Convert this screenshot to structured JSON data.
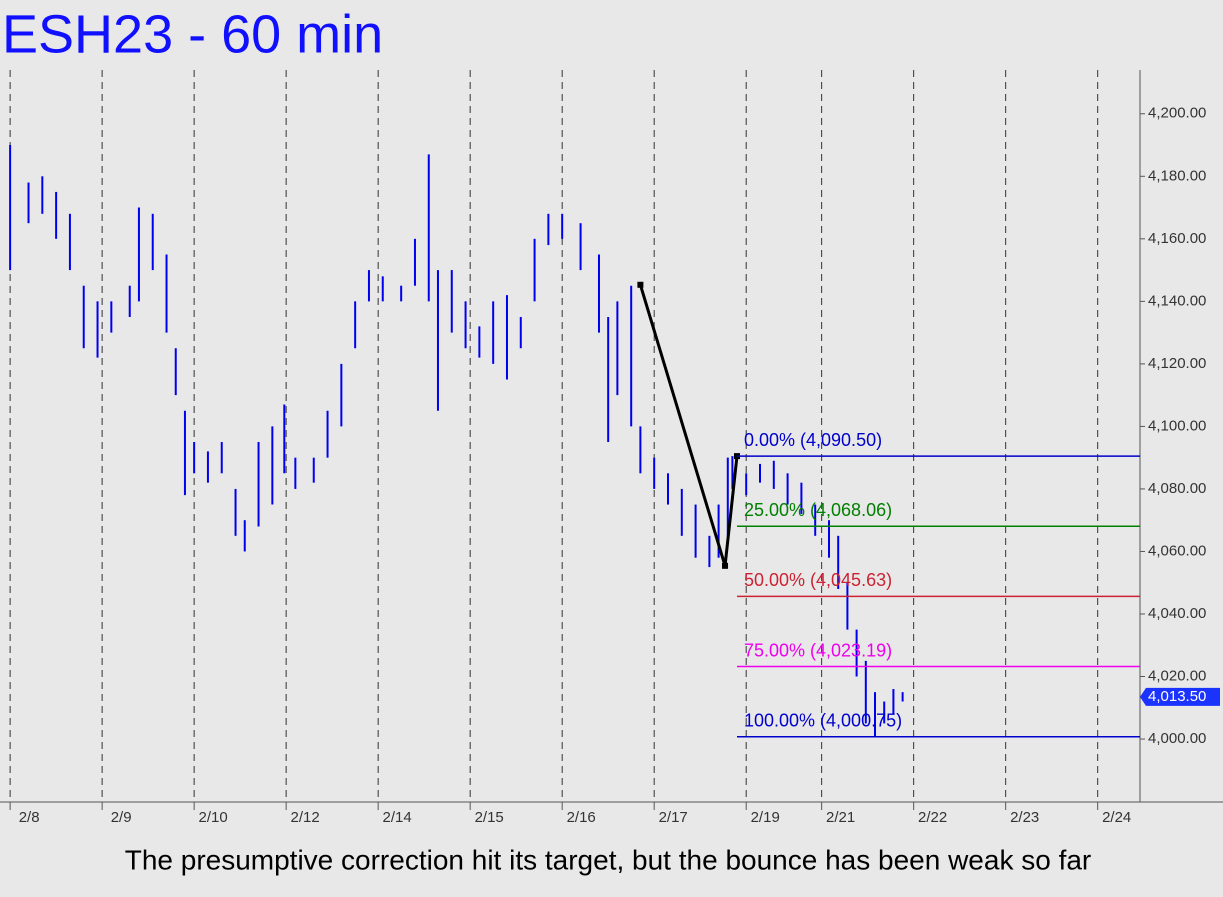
{
  "chart_data": {
    "type": "range",
    "title": "ESH23 - 60 min",
    "caption": "The presumptive correction hit its target, but the bounce has been weak so far",
    "xlim": [
      -0.11,
      12.28
    ],
    "ylim": [
      3980.5,
      4214
    ],
    "xticks": [
      {
        "value": 0,
        "label": "2/8"
      },
      {
        "value": 1,
        "label": "2/9"
      },
      {
        "value": 2,
        "label": "2/10"
      },
      {
        "value": 3,
        "label": "2/12"
      },
      {
        "value": 4,
        "label": "2/14"
      },
      {
        "value": 5,
        "label": "2/15"
      },
      {
        "value": 6,
        "label": "2/16"
      },
      {
        "value": 7,
        "label": "2/17"
      },
      {
        "value": 8,
        "label": "2/19"
      },
      {
        "value": 8.82,
        "label": "2/21"
      },
      {
        "value": 9.82,
        "label": "2/22"
      },
      {
        "value": 10.82,
        "label": "2/23"
      },
      {
        "value": 11.82,
        "label": "2/24"
      }
    ],
    "yticks": [
      {
        "value": 4000,
        "label": "4,000.00"
      },
      {
        "value": 4020,
        "label": "4,020.00"
      },
      {
        "value": 4040,
        "label": "4,040.00"
      },
      {
        "value": 4060,
        "label": "4,060.00"
      },
      {
        "value": 4080,
        "label": "4,080.00"
      },
      {
        "value": 4100,
        "label": "4,100.00"
      },
      {
        "value": 4120,
        "label": "4,120.00"
      },
      {
        "value": 4140,
        "label": "4,140.00"
      },
      {
        "value": 4160,
        "label": "4,160.00"
      },
      {
        "value": 4180,
        "label": "4,180.00"
      },
      {
        "value": 4200,
        "label": "4,200.00"
      }
    ],
    "series": [
      {
        "color": "#0000ee",
        "x": [
          0.0,
          0.2,
          0.35,
          0.5,
          0.65,
          0.8,
          0.95,
          1.1,
          1.3,
          1.4,
          1.55,
          1.7,
          1.8,
          1.9,
          2.0,
          2.15,
          2.3,
          2.45,
          2.55,
          2.7,
          2.85,
          2.98,
          3.1,
          3.3,
          3.45,
          3.6,
          3.75,
          3.9,
          4.05,
          4.25,
          4.4,
          4.55,
          4.65,
          4.8,
          4.95,
          5.1,
          5.25,
          5.4,
          5.55,
          5.7,
          5.85,
          6.0,
          6.2,
          6.4,
          6.5,
          6.6,
          6.75,
          6.85,
          7.0,
          7.15,
          7.3,
          7.45,
          7.6,
          7.7,
          7.8,
          7.85,
          8.0,
          8.15,
          8.3,
          8.45,
          8.6,
          8.75,
          8.9,
          9.0,
          9.1,
          9.2,
          9.3,
          9.4,
          9.5,
          9.6,
          9.7
        ],
        "high": [
          4190,
          4178,
          4180,
          4175,
          4168,
          4145,
          4140,
          4140,
          4145,
          4170,
          4168,
          4155,
          4125,
          4105,
          4095,
          4092,
          4095,
          4080,
          4070,
          4095,
          4100,
          4107,
          4090,
          4090,
          4105,
          4120,
          4140,
          4150,
          4148,
          4145,
          4160,
          4187,
          4150,
          4150,
          4140,
          4132,
          4140,
          4142,
          4135,
          4160,
          4168,
          4168,
          4165,
          4155,
          4135,
          4140,
          4145,
          4100,
          4090,
          4085,
          4080,
          4075,
          4065,
          4075,
          4090,
          4090.5,
          4085,
          4088,
          4089,
          4085,
          4082,
          4075,
          4070,
          4065,
          4050,
          4035,
          4025,
          4015,
          4012,
          4016,
          4015
        ],
        "low": [
          4150,
          4165,
          4168,
          4160,
          4150,
          4125,
          4122,
          4130,
          4135,
          4140,
          4150,
          4130,
          4110,
          4078,
          4085,
          4082,
          4085,
          4065,
          4060,
          4068,
          4075,
          4085,
          4080,
          4082,
          4090,
          4100,
          4125,
          4140,
          4140,
          4140,
          4145,
          4140,
          4105,
          4130,
          4125,
          4122,
          4120,
          4115,
          4125,
          4140,
          4158,
          4160,
          4150,
          4130,
          4095,
          4110,
          4100,
          4085,
          4080,
          4075,
          4065,
          4058,
          4055,
          4058,
          4065,
          4080,
          4078,
          4082,
          4080,
          4075,
          4072,
          4065,
          4058,
          4048,
          4035,
          4020,
          4005,
          4000.75,
          4005,
          4008,
          4012
        ]
      }
    ],
    "swing": {
      "color": "#000000",
      "x": [
        6.85,
        7.77,
        7.9
      ],
      "y": [
        4145.3,
        4055.4,
        4090.5
      ]
    },
    "levels_start": 7.9,
    "levels": [
      {
        "label": "0.00% (4,090.50)",
        "value": 4090.5,
        "color": "#0000cc"
      },
      {
        "label": "25.00% (4,068.06)",
        "value": 4068.06,
        "color": "#008000"
      },
      {
        "label": "50.00% (4,045.63)",
        "value": 4045.63,
        "color": "#cc2233"
      },
      {
        "label": "75.00% (4,023.19)",
        "value": 4023.19,
        "color": "#ee00ee"
      },
      {
        "label": "100.00% (4,000.75)",
        "value": 4000.75,
        "color": "#0000cc"
      }
    ],
    "last": {
      "label": "4,013.50",
      "value": 4013.5,
      "color": "#1a33ff"
    }
  }
}
